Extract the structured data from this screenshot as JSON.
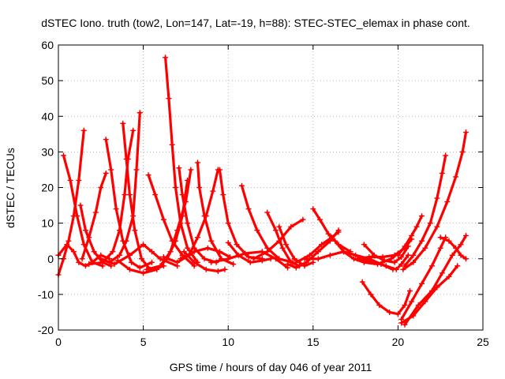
{
  "chart_data": {
    "type": "scatter",
    "title": "dSTEC Iono. truth (tow2, Lon=147, Lat=-19, h=88): STEC-STEC_elemax in phase cont.",
    "xlabel": "GPS time / hours of day 046 of year 2011",
    "ylabel": "dSTEC  / TECUs",
    "xlim": [
      0,
      25
    ],
    "ylim": [
      -20,
      60
    ],
    "xticks": [
      "0",
      "5",
      "10",
      "15",
      "20",
      "25"
    ],
    "yticks": [
      "-20",
      "-10",
      "0",
      "10",
      "20",
      "30",
      "40",
      "50",
      "60"
    ],
    "grid": true,
    "marker": "+",
    "color": "#ff0000",
    "series": [
      {
        "points": [
          [
            0.0,
            -4.5
          ],
          [
            0.3,
            0.0
          ],
          [
            0.6,
            5.0
          ],
          [
            0.9,
            12.0
          ],
          [
            1.2,
            22.0
          ],
          [
            1.5,
            36.0
          ]
        ]
      },
      {
        "points": [
          [
            0.3,
            29.0
          ],
          [
            0.7,
            22.0
          ],
          [
            1.1,
            12.0
          ],
          [
            1.5,
            4.0
          ],
          [
            2.0,
            -1.0
          ],
          [
            2.6,
            -2.0
          ]
        ]
      },
      {
        "points": [
          [
            0.0,
            1.0
          ],
          [
            0.5,
            4.0
          ],
          [
            0.9,
            2.0
          ],
          [
            1.2,
            -1.0
          ],
          [
            1.6,
            -2.0
          ],
          [
            2.0,
            -1.0
          ],
          [
            2.5,
            1.0
          ],
          [
            3.0,
            0.0
          ]
        ]
      },
      {
        "points": [
          [
            1.3,
            15.0
          ],
          [
            1.6,
            8.0
          ],
          [
            2.1,
            2.0
          ],
          [
            2.6,
            -1.0
          ],
          [
            3.1,
            -2.0
          ]
        ]
      },
      {
        "points": [
          [
            1.4,
            0.0
          ],
          [
            1.8,
            6.0
          ],
          [
            2.2,
            13.0
          ],
          [
            2.5,
            20.0
          ],
          [
            2.8,
            24.0
          ]
        ]
      },
      {
        "points": [
          [
            2.8,
            33.5
          ],
          [
            3.1,
            25.0
          ],
          [
            3.4,
            14.0
          ],
          [
            3.8,
            5.0
          ],
          [
            4.3,
            -1.0
          ],
          [
            4.8,
            -2.5
          ],
          [
            5.5,
            -1.0
          ]
        ]
      },
      {
        "points": [
          [
            1.8,
            -1.5
          ],
          [
            2.6,
            -1.0
          ],
          [
            3.2,
            2.0
          ],
          [
            3.6,
            8.0
          ],
          [
            3.9,
            18.0
          ],
          [
            4.1,
            28.0
          ],
          [
            4.4,
            36.0
          ]
        ]
      },
      {
        "points": [
          [
            3.8,
            38.0
          ],
          [
            4.0,
            28.0
          ],
          [
            4.2,
            18.0
          ],
          [
            4.5,
            8.0
          ],
          [
            4.9,
            0.0
          ],
          [
            5.4,
            -3.0
          ],
          [
            6.2,
            -2.0
          ]
        ]
      },
      {
        "points": [
          [
            3.0,
            -1.0
          ],
          [
            3.6,
            1.0
          ],
          [
            4.0,
            5.0
          ],
          [
            4.4,
            12.0
          ],
          [
            4.6,
            25.0
          ],
          [
            4.8,
            41.0
          ]
        ]
      },
      {
        "points": [
          [
            2.5,
            0.0
          ],
          [
            3.3,
            -1.5
          ],
          [
            4.2,
            1.0
          ],
          [
            5.0,
            4.0
          ],
          [
            5.5,
            2.0
          ],
          [
            6.0,
            0.0
          ],
          [
            7.0,
            -2.0
          ]
        ]
      },
      {
        "points": [
          [
            5.3,
            23.5
          ],
          [
            5.7,
            18.0
          ],
          [
            6.2,
            11.0
          ],
          [
            6.7,
            5.0
          ],
          [
            7.3,
            1.0
          ],
          [
            8.0,
            -2.0
          ]
        ]
      },
      {
        "points": [
          [
            3.5,
            -0.5
          ],
          [
            4.2,
            -3.0
          ],
          [
            5.0,
            -4.0
          ],
          [
            5.8,
            -3.0
          ],
          [
            6.4,
            0.0
          ],
          [
            6.9,
            5.0
          ],
          [
            7.3,
            12.0
          ],
          [
            7.6,
            22.0
          ]
        ]
      },
      {
        "points": [
          [
            6.3,
            56.5
          ],
          [
            6.5,
            45.0
          ],
          [
            6.7,
            32.0
          ],
          [
            6.9,
            20.0
          ],
          [
            7.2,
            10.0
          ],
          [
            7.6,
            3.0
          ],
          [
            8.2,
            -1.0
          ]
        ]
      },
      {
        "points": [
          [
            5.2,
            -3.0
          ],
          [
            6.0,
            -2.0
          ],
          [
            6.6,
            2.0
          ],
          [
            7.0,
            8.0
          ],
          [
            7.5,
            16.0
          ],
          [
            7.8,
            25.0
          ]
        ]
      },
      {
        "points": [
          [
            7.1,
            25.5
          ],
          [
            7.3,
            18.0
          ],
          [
            7.6,
            10.0
          ],
          [
            8.0,
            3.0
          ],
          [
            8.6,
            0.0
          ],
          [
            9.3,
            -1.0
          ]
        ]
      },
      {
        "points": [
          [
            8.2,
            27.0
          ],
          [
            8.3,
            20.0
          ],
          [
            8.6,
            12.0
          ],
          [
            9.0,
            5.0
          ],
          [
            9.6,
            0.0
          ],
          [
            10.3,
            -1.5
          ]
        ]
      },
      {
        "points": [
          [
            6.2,
            0.5
          ],
          [
            7.0,
            -1.0
          ],
          [
            7.7,
            1.0
          ],
          [
            8.2,
            6.0
          ],
          [
            8.7,
            12.0
          ],
          [
            9.1,
            19.0
          ],
          [
            9.4,
            25.0
          ]
        ]
      },
      {
        "points": [
          [
            7.4,
            2.0
          ],
          [
            8.0,
            -1.0
          ],
          [
            8.7,
            -3.0
          ],
          [
            9.4,
            -3.5
          ],
          [
            9.8,
            -3.0
          ]
        ]
      },
      {
        "points": [
          [
            9.5,
            25.0
          ],
          [
            9.7,
            18.0
          ],
          [
            10.0,
            10.0
          ],
          [
            10.5,
            4.0
          ],
          [
            11.2,
            0.5
          ],
          [
            12.0,
            0.0
          ]
        ]
      },
      {
        "points": [
          [
            7.2,
            0.0
          ],
          [
            8.0,
            2.0
          ],
          [
            8.8,
            3.0
          ],
          [
            9.5,
            2.0
          ],
          [
            10.1,
            0.5
          ]
        ]
      },
      {
        "points": [
          [
            10.8,
            20.5
          ],
          [
            11.2,
            14.0
          ],
          [
            11.7,
            8.0
          ],
          [
            12.3,
            3.0
          ],
          [
            13.0,
            0.0
          ],
          [
            13.8,
            -1.0
          ]
        ]
      },
      {
        "points": [
          [
            10.0,
            4.5
          ],
          [
            10.6,
            1.0
          ],
          [
            11.3,
            -1.0
          ],
          [
            12.0,
            -0.5
          ],
          [
            12.5,
            0.0
          ]
        ]
      },
      {
        "points": [
          [
            9.0,
            -1.0
          ],
          [
            10.0,
            0.0
          ],
          [
            11.0,
            1.5
          ],
          [
            12.0,
            2.0
          ],
          [
            12.8,
            0.0
          ],
          [
            13.5,
            -2.5
          ]
        ]
      },
      {
        "points": [
          [
            11.5,
            0.0
          ],
          [
            12.3,
            2.0
          ],
          [
            13.0,
            5.0
          ],
          [
            13.7,
            9.0
          ],
          [
            14.4,
            11.0
          ]
        ]
      },
      {
        "points": [
          [
            12.3,
            13.0
          ],
          [
            12.8,
            8.0
          ],
          [
            13.2,
            3.0
          ],
          [
            13.7,
            -1.0
          ],
          [
            14.2,
            -2.0
          ]
        ]
      },
      {
        "points": [
          [
            13.0,
            9.0
          ],
          [
            13.4,
            4.0
          ],
          [
            13.9,
            0.0
          ],
          [
            14.5,
            -2.0
          ],
          [
            15.0,
            -1.0
          ]
        ]
      },
      {
        "points": [
          [
            13.5,
            -1.5
          ],
          [
            14.0,
            -2.5
          ],
          [
            14.6,
            -1.0
          ],
          [
            15.3,
            2.0
          ],
          [
            16.0,
            5.0
          ],
          [
            16.5,
            8.0
          ]
        ]
      },
      {
        "points": [
          [
            15.0,
            14.0
          ],
          [
            15.4,
            11.0
          ],
          [
            15.9,
            7.0
          ],
          [
            16.5,
            4.0
          ],
          [
            17.2,
            2.0
          ]
        ]
      },
      {
        "points": [
          [
            14.0,
            -1.0
          ],
          [
            14.8,
            1.0
          ],
          [
            15.5,
            4.0
          ],
          [
            16.1,
            6.0
          ],
          [
            16.5,
            7.5
          ]
        ]
      },
      {
        "points": [
          [
            14.5,
            0.0
          ],
          [
            15.3,
            0.0
          ],
          [
            16.0,
            1.0
          ],
          [
            16.8,
            2.0
          ],
          [
            17.5,
            1.0
          ],
          [
            18.3,
            0.0
          ],
          [
            19.0,
            -1.5
          ],
          [
            19.7,
            -3.0
          ]
        ]
      },
      {
        "points": [
          [
            16.3,
            5.0
          ],
          [
            16.8,
            2.0
          ],
          [
            17.4,
            0.0
          ],
          [
            18.0,
            -1.0
          ],
          [
            18.8,
            -1.5
          ],
          [
            19.6,
            0.0
          ],
          [
            20.0,
            1.5
          ]
        ]
      },
      {
        "points": [
          [
            18.0,
            4.0
          ],
          [
            18.6,
            1.0
          ],
          [
            19.2,
            -0.5
          ],
          [
            19.8,
            -1.0
          ],
          [
            20.2,
            0.5
          ],
          [
            20.6,
            3.5
          ]
        ]
      },
      {
        "points": [
          [
            17.8,
            0.0
          ],
          [
            18.6,
            -1.0
          ],
          [
            19.3,
            -2.0
          ],
          [
            19.9,
            -3.0
          ],
          [
            20.2,
            -1.5
          ],
          [
            20.6,
            1.0
          ]
        ]
      },
      {
        "points": [
          [
            17.6,
            0.0
          ],
          [
            18.3,
            0.5
          ],
          [
            19.1,
            0.5
          ],
          [
            19.8,
            1.0
          ],
          [
            20.4,
            3.0
          ],
          [
            20.8,
            5.5
          ]
        ]
      },
      {
        "points": [
          [
            17.9,
            -6.5
          ],
          [
            18.4,
            -10.0
          ],
          [
            18.9,
            -13.0
          ],
          [
            19.5,
            -15.0
          ],
          [
            20.0,
            -15.5
          ],
          [
            20.4,
            -13.0
          ],
          [
            20.7,
            -9.0
          ]
        ]
      },
      {
        "points": [
          [
            20.0,
            1.0
          ],
          [
            20.4,
            3.5
          ],
          [
            20.8,
            6.5
          ],
          [
            21.1,
            9.0
          ],
          [
            21.4,
            12.0
          ]
        ]
      },
      {
        "points": [
          [
            20.2,
            -17.0
          ],
          [
            20.8,
            -12.0
          ],
          [
            21.4,
            -7.0
          ],
          [
            22.0,
            -2.0
          ],
          [
            22.5,
            3.0
          ],
          [
            22.8,
            6.0
          ]
        ]
      },
      {
        "points": [
          [
            20.4,
            -18.5
          ],
          [
            21.2,
            -13.0
          ],
          [
            22.0,
            -9.0
          ],
          [
            22.6,
            -4.0
          ],
          [
            23.2,
            1.0
          ],
          [
            23.7,
            4.0
          ],
          [
            24.0,
            6.5
          ]
        ]
      },
      {
        "points": [
          [
            20.4,
            -2.0
          ],
          [
            20.9,
            1.0
          ],
          [
            21.4,
            5.0
          ],
          [
            21.9,
            10.0
          ],
          [
            22.3,
            17.0
          ],
          [
            22.6,
            24.0
          ],
          [
            22.8,
            29.0
          ]
        ]
      },
      {
        "points": [
          [
            20.2,
            -18.0
          ],
          [
            20.9,
            -16.0
          ],
          [
            21.6,
            -12.0
          ],
          [
            22.3,
            -8.0
          ],
          [
            23.0,
            -5.0
          ],
          [
            23.5,
            -2.0
          ]
        ]
      },
      {
        "points": [
          [
            20.3,
            -3.0
          ],
          [
            20.9,
            -1.0
          ],
          [
            21.6,
            3.0
          ],
          [
            22.3,
            9.0
          ],
          [
            22.9,
            16.0
          ],
          [
            23.4,
            23.0
          ],
          [
            23.8,
            30.0
          ],
          [
            24.0,
            35.5
          ]
        ]
      },
      {
        "points": [
          [
            22.5,
            6.0
          ],
          [
            23.0,
            5.0
          ],
          [
            23.4,
            3.0
          ],
          [
            23.7,
            1.0
          ],
          [
            24.0,
            0.0
          ]
        ]
      }
    ]
  }
}
